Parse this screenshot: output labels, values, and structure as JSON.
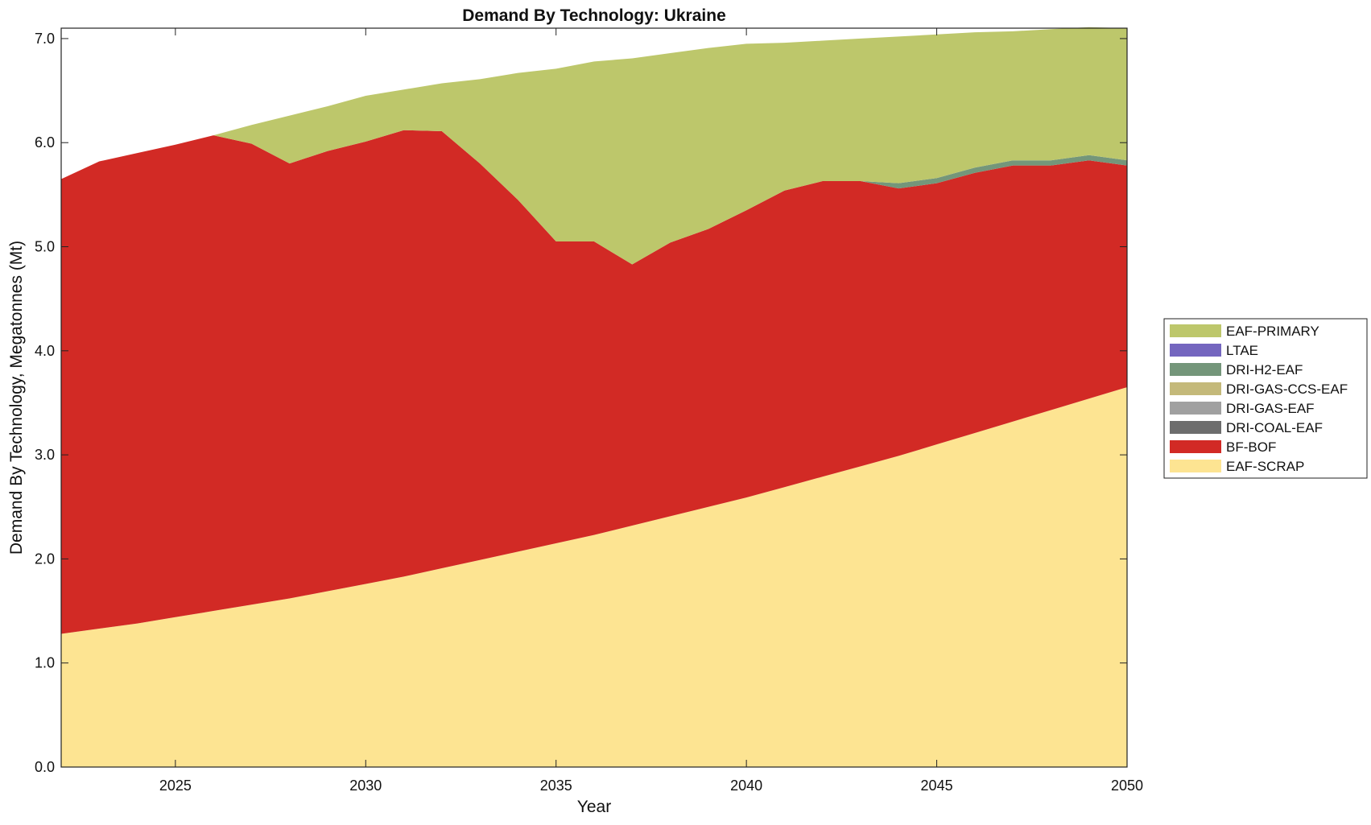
{
  "chart_data": {
    "type": "area",
    "stacked": true,
    "title": "Demand By Technology: Ukraine",
    "xlabel": "Year",
    "ylabel": "Demand By Technology, Megatonnes (Mt)",
    "xlim": [
      2022,
      2050
    ],
    "ylim": [
      0,
      7.1
    ],
    "xticks": [
      2025,
      2030,
      2035,
      2040,
      2045,
      2050
    ],
    "xtick_labels": [
      "2025",
      "2030",
      "2035",
      "2040",
      "2045",
      "2050"
    ],
    "yticks": [
      0,
      1,
      2,
      3,
      4,
      5,
      6,
      7
    ],
    "ytick_labels": [
      "0.0",
      "1.0",
      "2.0",
      "3.0",
      "4.0",
      "5.0",
      "6.0",
      "7.0"
    ],
    "legend_position": "right",
    "x": [
      2022,
      2023,
      2024,
      2025,
      2026,
      2027,
      2028,
      2029,
      2030,
      2031,
      2032,
      2033,
      2034,
      2035,
      2036,
      2037,
      2038,
      2039,
      2040,
      2041,
      2042,
      2043,
      2044,
      2045,
      2046,
      2047,
      2048,
      2049,
      2050
    ],
    "series": [
      {
        "name": "EAF-SCRAP",
        "color": "#fde492",
        "values": [
          1.28,
          1.33,
          1.38,
          1.44,
          1.5,
          1.56,
          1.62,
          1.69,
          1.76,
          1.83,
          1.91,
          1.99,
          2.07,
          2.15,
          2.23,
          2.32,
          2.41,
          2.5,
          2.59,
          2.69,
          2.79,
          2.89,
          2.99,
          3.1,
          3.21,
          3.32,
          3.43,
          3.54,
          3.65
        ]
      },
      {
        "name": "BF-BOF",
        "color": "#d22a25",
        "values": [
          4.37,
          4.49,
          4.52,
          4.54,
          4.57,
          4.43,
          4.18,
          4.23,
          4.25,
          4.29,
          4.2,
          3.81,
          3.38,
          2.9,
          2.82,
          2.51,
          2.63,
          2.67,
          2.76,
          2.85,
          2.84,
          2.74,
          2.57,
          2.51,
          2.5,
          2.46,
          2.35,
          2.29,
          2.13
        ]
      },
      {
        "name": "DRI-COAL-EAF",
        "color": "#6d6d6d",
        "values": [
          0,
          0,
          0,
          0,
          0,
          0,
          0,
          0,
          0,
          0,
          0,
          0,
          0,
          0,
          0,
          0,
          0,
          0,
          0,
          0,
          0,
          0,
          0,
          0,
          0,
          0,
          0,
          0,
          0
        ]
      },
      {
        "name": "DRI-GAS-EAF",
        "color": "#a0a0a0",
        "values": [
          0,
          0,
          0,
          0,
          0,
          0,
          0,
          0,
          0,
          0,
          0,
          0,
          0,
          0,
          0,
          0,
          0,
          0,
          0,
          0,
          0,
          0,
          0,
          0,
          0,
          0,
          0,
          0,
          0
        ]
      },
      {
        "name": "DRI-GAS-CCS-EAF",
        "color": "#c4b97a",
        "values": [
          0,
          0,
          0,
          0,
          0,
          0,
          0,
          0,
          0,
          0,
          0,
          0,
          0,
          0,
          0,
          0,
          0,
          0,
          0,
          0,
          0,
          0,
          0,
          0,
          0,
          0,
          0,
          0,
          0
        ]
      },
      {
        "name": "DRI-H2-EAF",
        "color": "#74967a",
        "values": [
          0,
          0,
          0,
          0,
          0,
          0,
          0,
          0,
          0,
          0,
          0,
          0,
          0,
          0,
          0,
          0,
          0,
          0,
          0,
          0,
          0,
          0,
          0.05,
          0.05,
          0.05,
          0.05,
          0.05,
          0.05,
          0.05
        ]
      },
      {
        "name": "LTAE",
        "color": "#7466bf",
        "values": [
          0,
          0,
          0,
          0,
          0,
          0,
          0,
          0,
          0,
          0,
          0,
          0,
          0,
          0,
          0,
          0,
          0,
          0,
          0,
          0,
          0,
          0,
          0,
          0,
          0,
          0,
          0,
          0,
          0
        ]
      },
      {
        "name": "EAF-PRIMARY",
        "color": "#bdc76b",
        "values": [
          0,
          0,
          0,
          0,
          0,
          0.18,
          0.46,
          0.43,
          0.44,
          0.39,
          0.46,
          0.81,
          1.22,
          1.66,
          1.73,
          1.98,
          1.82,
          1.74,
          1.6,
          1.42,
          1.35,
          1.37,
          1.41,
          1.38,
          1.3,
          1.24,
          1.26,
          1.23,
          1.27
        ]
      }
    ],
    "legend": [
      "EAF-PRIMARY",
      "LTAE",
      "DRI-H2-EAF",
      "DRI-GAS-CCS-EAF",
      "DRI-GAS-EAF",
      "DRI-COAL-EAF",
      "BF-BOF",
      "EAF-SCRAP"
    ]
  }
}
